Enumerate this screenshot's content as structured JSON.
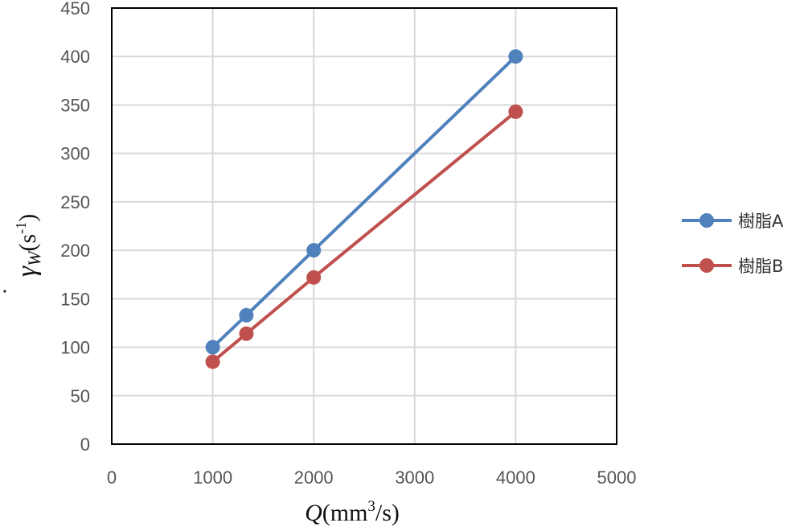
{
  "chart_data": {
    "type": "line",
    "title": "",
    "xlabel": {
      "main": "Q",
      "paren_open": "(mm",
      "sup": "3",
      "tail": "/s)"
    },
    "ylabel": {
      "main": "γ",
      "dot": "˙",
      "sub": "W",
      "paren_open": "(s",
      "sup": "-1",
      "tail": ")"
    },
    "xlim": [
      0,
      5000
    ],
    "ylim": [
      0,
      450
    ],
    "xticks": [
      0,
      1000,
      2000,
      3000,
      4000,
      5000
    ],
    "yticks": [
      0,
      50,
      100,
      150,
      200,
      250,
      300,
      350,
      400,
      450
    ],
    "grid": true,
    "legend_position": "right",
    "series": [
      {
        "name": "樹脂A",
        "color": "#4f81bd",
        "x": [
          1000,
          1333,
          2000,
          4000
        ],
        "y": [
          100,
          133,
          200,
          400
        ]
      },
      {
        "name": "樹脂B",
        "color": "#c0504d",
        "x": [
          1000,
          1333,
          2000,
          4000
        ],
        "y": [
          85,
          114,
          172,
          343
        ]
      }
    ]
  }
}
